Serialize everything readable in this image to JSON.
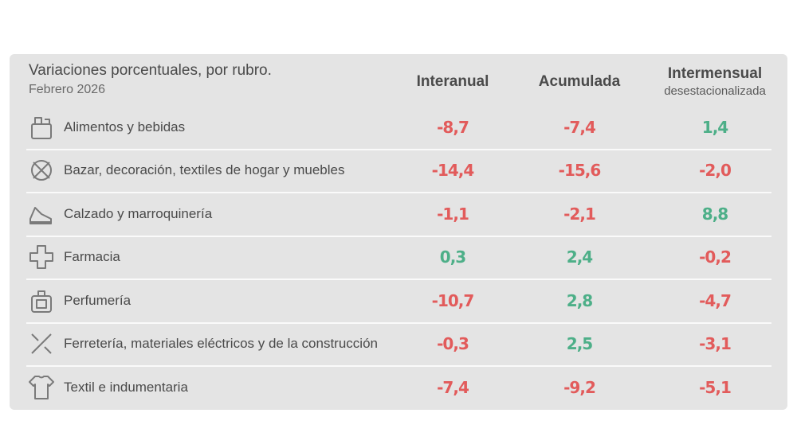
{
  "header": {
    "title": "Variaciones porcentuales, por rubro.",
    "subtitle": "Febrero 2026"
  },
  "table": {
    "columns": [
      {
        "label": "Interanual"
      },
      {
        "label": "Acumulada"
      },
      {
        "label": "Intermensual",
        "sublabel": "desestacionalizada"
      }
    ],
    "rows": [
      {
        "label": "Alimentos y bebidas",
        "values": [
          "-8,7",
          "-7,4",
          "1,4"
        ]
      },
      {
        "label": "Bazar, decoración, textiles de hogar y muebles",
        "values": [
          "-14,4",
          "-15,6",
          "-2,0"
        ]
      },
      {
        "label": "Calzado y marroquinería",
        "values": [
          "-1,1",
          "-2,1",
          "8,8"
        ]
      },
      {
        "label": "Farmacia",
        "values": [
          "0,3",
          "2,4",
          "-0,2"
        ]
      },
      {
        "label": "Perfumería",
        "values": [
          "-10,7",
          "2,8",
          "-4,7"
        ]
      },
      {
        "label": "Ferretería, materiales eléctricos y de la construcción",
        "values": [
          "-0,3",
          "2,5",
          "-3,1"
        ]
      },
      {
        "label": "Textil e indumentaria",
        "values": [
          "-7,4",
          "-9,2",
          "-5,1"
        ]
      }
    ],
    "negative_color": "#e25b5b",
    "positive_color": "#4daf88"
  }
}
